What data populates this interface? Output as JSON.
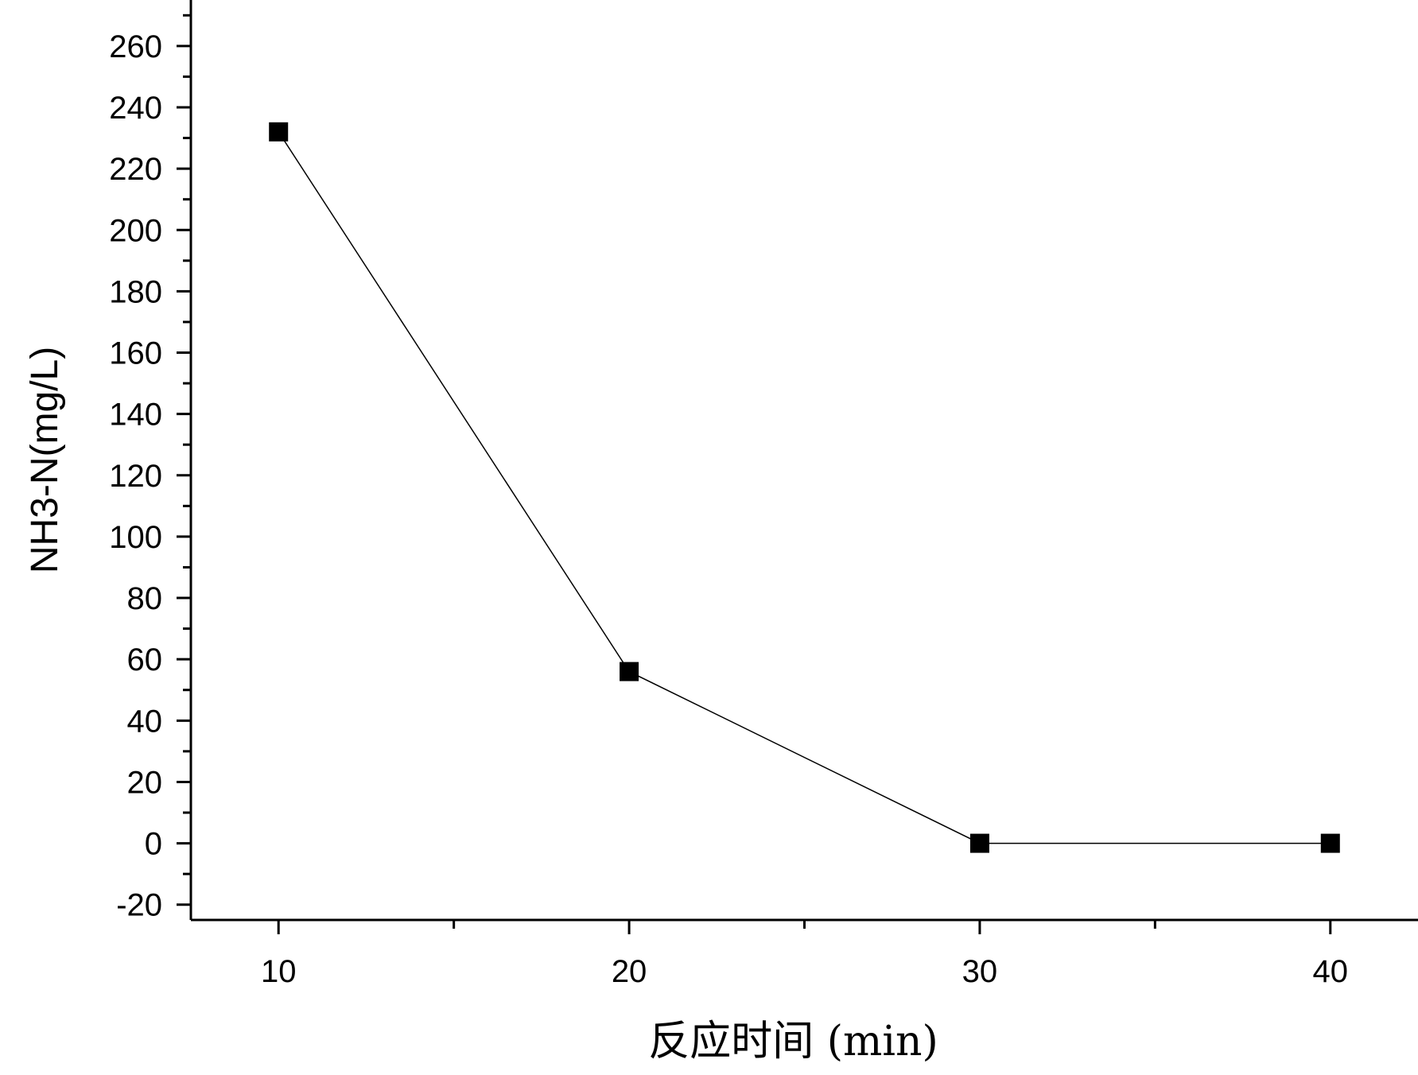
{
  "chart_data": {
    "type": "line",
    "title": "",
    "xlabel": "反应时间 (min)",
    "ylabel": "NH3-N(mg/L)",
    "xlim": [
      7.5,
      42.5
    ],
    "ylim": [
      -25,
      275
    ],
    "x_ticks": [
      10,
      20,
      30,
      40
    ],
    "x_minor_ticks": [
      15,
      25,
      35
    ],
    "y_ticks": [
      -20,
      0,
      20,
      40,
      60,
      80,
      100,
      120,
      140,
      160,
      180,
      200,
      220,
      240,
      260
    ],
    "y_minor_ticks": [
      -10,
      10,
      30,
      50,
      70,
      90,
      110,
      130,
      150,
      170,
      190,
      210,
      230,
      250,
      270
    ],
    "x_tick_labels": [
      "10",
      "20",
      "30",
      "40"
    ],
    "y_tick_labels": [
      "-20",
      "0",
      "20",
      "40",
      "60",
      "80",
      "100",
      "120",
      "140",
      "160",
      "180",
      "200",
      "220",
      "240",
      "260"
    ],
    "grid": false,
    "legend": "none",
    "series": [
      {
        "marker": "square",
        "color": "#000000",
        "x": [
          10,
          20,
          30,
          40
        ],
        "y": [
          232,
          56,
          0,
          0
        ]
      }
    ]
  }
}
